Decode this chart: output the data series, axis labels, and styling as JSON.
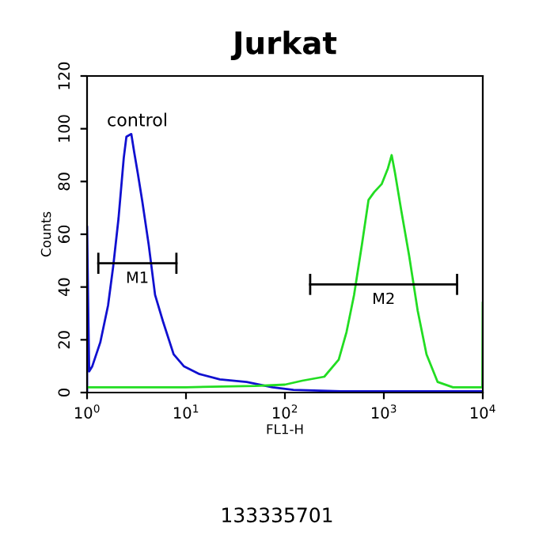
{
  "chart_data": {
    "type": "line",
    "title": "Jurkat",
    "xlabel": "FL1-H",
    "ylabel": "Counts",
    "log": "x",
    "xlim": [
      1,
      10000
    ],
    "ylim": [
      0,
      120
    ],
    "xticks": [
      {
        "value": 1,
        "label": "10$^{0}$"
      },
      {
        "value": 10,
        "label": "10$^{1}$"
      },
      {
        "value": 100,
        "label": "10$^{2}$"
      },
      {
        "value": 1000,
        "label": "10$^{3}$"
      },
      {
        "value": 10000,
        "label": "10$^{4}$"
      }
    ],
    "yticks": [
      0,
      20,
      40,
      60,
      80,
      100,
      120
    ],
    "grid": false,
    "legend": false,
    "series": [
      {
        "color": "#1010d0",
        "x": [
          1,
          1,
          1.05,
          1.13,
          1.36,
          1.63,
          1.84,
          2.08,
          2.35,
          2.5,
          2.8,
          3.0,
          3.26,
          3.6,
          4.2,
          4.87,
          5.85,
          7.5,
          9.5,
          13.7,
          22,
          41,
          75,
          122,
          370,
          2300,
          9900
        ],
        "values": [
          0,
          63,
          8,
          10,
          19,
          33,
          48,
          66,
          89,
          97,
          98,
          91,
          83,
          73,
          56,
          37,
          27,
          14.5,
          10,
          7,
          5,
          4,
          2,
          1,
          0.5,
          0.5,
          0.5
        ]
      },
      {
        "color": "#22dd22",
        "x": [
          1,
          10,
          50,
          100,
          150,
          250,
          350,
          420,
          500,
          600,
          700,
          800,
          950,
          1100,
          1200,
          1300,
          1500,
          1800,
          2200,
          2700,
          3500,
          5000,
          9900,
          10000
        ],
        "values": [
          2,
          2,
          2.5,
          3,
          4.5,
          6,
          12.5,
          23,
          37,
          56,
          73,
          76,
          79,
          85,
          90,
          83,
          69,
          52,
          31,
          14.5,
          4,
          2,
          2,
          34
        ]
      },
      {
        "name": "M1",
        "color": "#000000",
        "x": [
          1.3,
          8
        ],
        "values": [
          49,
          49
        ],
        "errors": [
          4,
          4
        ]
      },
      {
        "name": "M2",
        "color": "#000000",
        "x": [
          180,
          5500
        ],
        "values": [
          41,
          41
        ],
        "errors": [
          4,
          4
        ]
      }
    ],
    "annotations": [
      "control",
      "133335701"
    ]
  }
}
